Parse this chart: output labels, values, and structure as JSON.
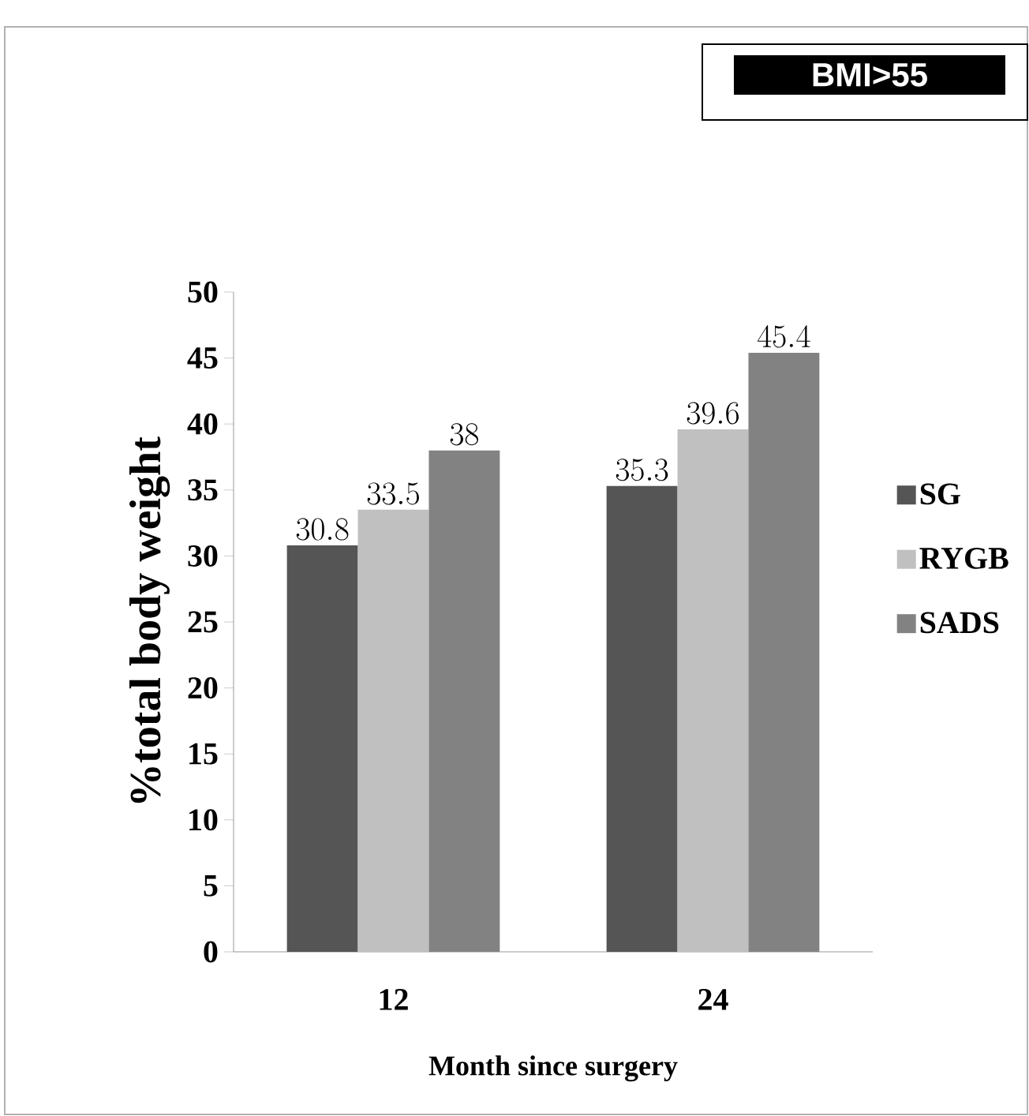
{
  "chart_data": {
    "type": "bar",
    "title": "BMI>55",
    "xlabel": "Month since surgery",
    "ylabel": "%total body weight",
    "categories": [
      "12",
      "24"
    ],
    "series": [
      {
        "name": "SG",
        "color": "#555555",
        "values": [
          30.8,
          35.3
        ]
      },
      {
        "name": "RYGB",
        "color": "#c0c0c0",
        "values": [
          33.5,
          39.6
        ]
      },
      {
        "name": "SADS",
        "color": "#828282",
        "values": [
          38,
          45.4
        ]
      }
    ],
    "ylim": [
      0,
      50
    ],
    "yticks": [
      0,
      5,
      10,
      15,
      20,
      25,
      30,
      35,
      40,
      45,
      50
    ],
    "data_labels": true,
    "legend": "right",
    "grid": false
  }
}
